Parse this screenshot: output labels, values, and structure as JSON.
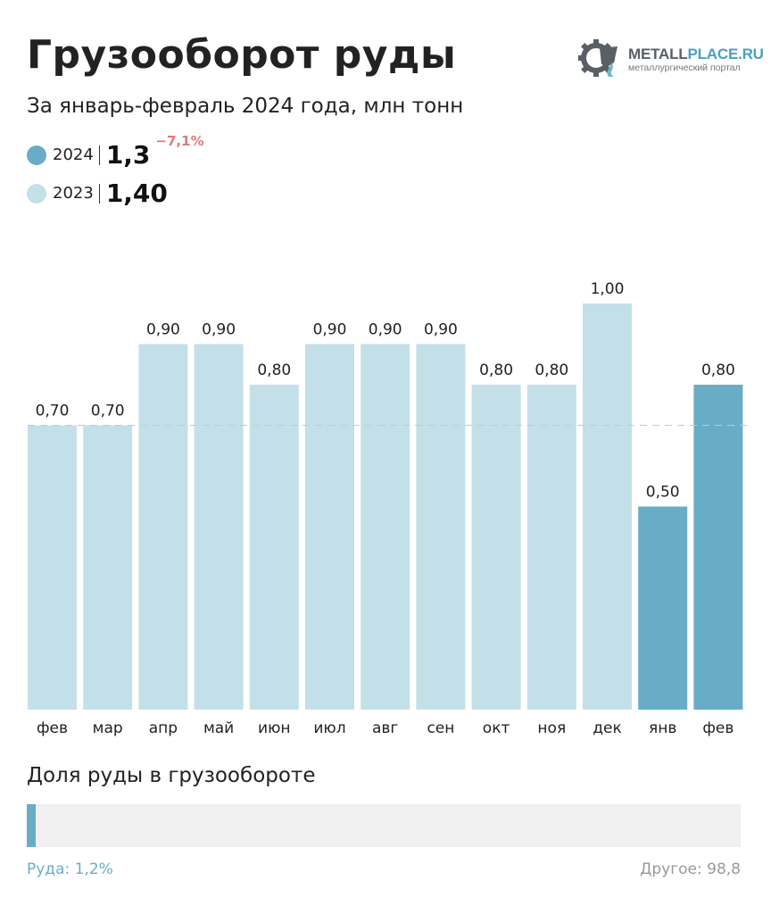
{
  "header": {
    "title": "Грузооборот руды",
    "subtitle": "За январь-февраль 2024 года, млн тонн"
  },
  "logo": {
    "name_part1": "METALL",
    "name_part2": "PLACE.RU",
    "tagline": "металлургический портал"
  },
  "legend": [
    {
      "year": "2024",
      "value": "1,3",
      "change": "−7,1%",
      "color": "#68adc5"
    },
    {
      "year": "2023",
      "value": "1,40",
      "change": "",
      "color": "#c3e0e8"
    }
  ],
  "colors": {
    "bar_2023": "#c3e0e8",
    "bar_2024": "#68adc5",
    "reference_line": "#c8c8c8",
    "change_negative": "#e07a7a"
  },
  "chart_data": {
    "type": "bar",
    "title": "Грузооборот руды",
    "subtitle": "За январь-февраль 2024 года, млн тонн",
    "categories": [
      "фев",
      "мар",
      "апр",
      "май",
      "июн",
      "июл",
      "авг",
      "сен",
      "окт",
      "ноя",
      "дек",
      "янв",
      "фев"
    ],
    "values": [
      0.7,
      0.7,
      0.9,
      0.9,
      0.8,
      0.9,
      0.9,
      0.9,
      0.8,
      0.8,
      1.0,
      0.5,
      0.8
    ],
    "labels": [
      "0,70",
      "0,70",
      "0,90",
      "0,90",
      "0,80",
      "0,90",
      "0,90",
      "0,90",
      "0,80",
      "0,80",
      "1,00",
      "0,50",
      "0,80"
    ],
    "series_year": [
      "2023",
      "2023",
      "2023",
      "2023",
      "2023",
      "2023",
      "2023",
      "2023",
      "2023",
      "2023",
      "2023",
      "2024",
      "2024"
    ],
    "reference_line": 0.7,
    "ylim": [
      0,
      1.0
    ],
    "grid": false
  },
  "share": {
    "title": "Доля руды в грузообороте",
    "ore_label": "Руда: 1,2%",
    "other_label": "Другое: 98,8",
    "ore_percent": 1.2
  }
}
